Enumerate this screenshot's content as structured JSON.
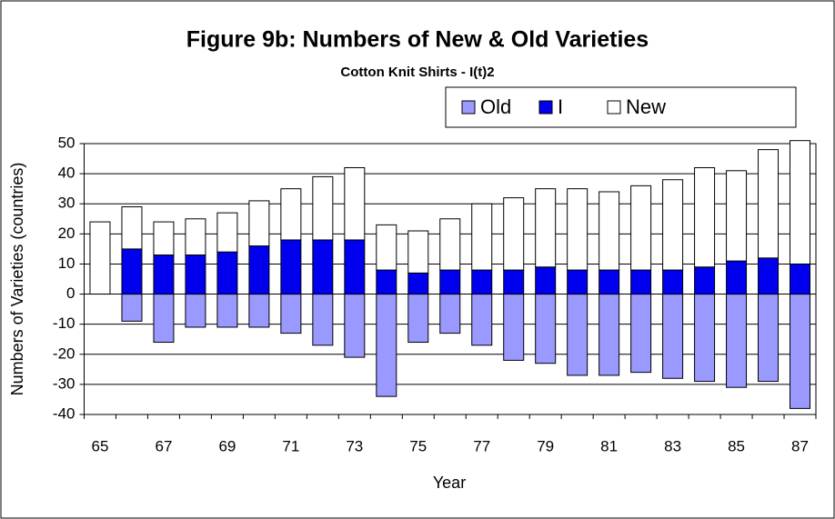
{
  "chart_data": {
    "type": "bar",
    "stacked": true,
    "title": "Figure 9b: Numbers of New & Old Varieties",
    "subtitle": "Cotton Knit Shirts - I(t)2",
    "x_label": "Year",
    "y_label": "Numbers of Varieties (countries)",
    "categories": [
      "65",
      null,
      "67",
      null,
      "69",
      null,
      "71",
      null,
      "73",
      null,
      "75",
      null,
      "77",
      null,
      "79",
      null,
      "81",
      null,
      "83",
      null,
      "85",
      null,
      "87"
    ],
    "series": [
      {
        "name": "Old",
        "color": "#9999ff",
        "values": [
          null,
          -9,
          -16,
          -11,
          -11,
          -11,
          -13,
          -17,
          -21,
          -34,
          -16,
          -13,
          -17,
          -22,
          -23,
          -27,
          -27,
          -26,
          -28,
          -29,
          -31,
          -29,
          -38
        ]
      },
      {
        "name": "I",
        "color": "#0000ee",
        "values": [
          null,
          15,
          13,
          13,
          14,
          16,
          18,
          18,
          18,
          8,
          7,
          8,
          8,
          8,
          9,
          8,
          8,
          8,
          8,
          9,
          11,
          12,
          10
        ]
      },
      {
        "name": "New",
        "color": "#ffffff",
        "values": [
          24,
          14,
          11,
          12,
          13,
          15,
          17,
          21,
          24,
          15,
          14,
          17,
          22,
          24,
          26,
          27,
          26,
          28,
          30,
          33,
          30,
          36,
          41
        ]
      }
    ],
    "ylim": [
      -40,
      50
    ],
    "yticks": [
      -40,
      -30,
      -20,
      -10,
      0,
      10,
      20,
      30,
      40,
      50
    ],
    "grid": true,
    "legend": "top-right"
  }
}
